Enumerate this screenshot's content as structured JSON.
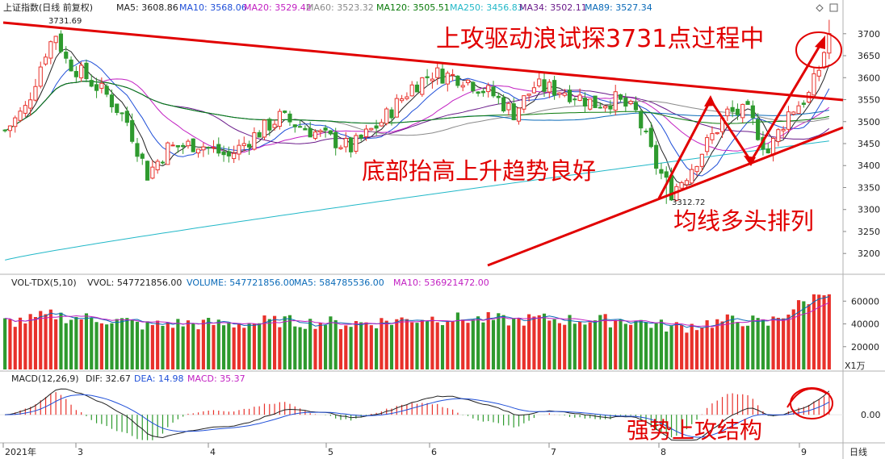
{
  "colors": {
    "up": "#e8312b",
    "down": "#2e9a2e",
    "annotation": "#e10000",
    "ma5": "#222222",
    "ma10": "#1f4fd8",
    "ma20": "#c21fc2",
    "ma60": "#8a8a8a",
    "ma120": "#0a7a0a",
    "ma250": "#22b8c8",
    "ma34": "#6a1a8a",
    "ma89": "#0a6ab8"
  },
  "main_header": {
    "title": "上证指数(日线 前复权)",
    "ma": [
      {
        "text": "MA5: 3608.86",
        "color": "#222222"
      },
      {
        "text": "MA10: 3568.06",
        "color": "#1f4fd8"
      },
      {
        "text": "MA20: 3529.42",
        "color": "#c21fc2"
      },
      {
        "text": "MA60: 3523.32",
        "color": "#8a8a8a"
      },
      {
        "text": "MA120: 3505.51",
        "color": "#0a7a0a"
      },
      {
        "text": "MA250: 3456.83",
        "color": "#22b8c8"
      },
      {
        "text": "MA34: 3502.11",
        "color": "#6a1a8a"
      },
      {
        "text": "MA89: 3527.34",
        "color": "#0a6ab8"
      }
    ]
  },
  "vol_header": {
    "prefix": "VOL-TDX(5,10)",
    "items": [
      {
        "text": "VVOL: 547721856.00",
        "color": "#222222"
      },
      {
        "text": "VOLUME: 547721856.00",
        "color": "#0a6ab8"
      },
      {
        "text": "MA5: 584785536.00",
        "color": "#0a6ab8"
      },
      {
        "text": "MA10: 536921472.00",
        "color": "#c21fc2"
      }
    ]
  },
  "macd_header": {
    "prefix": "MACD(12,26,9)",
    "items": [
      {
        "text": "DIF: 32.67",
        "color": "#222222"
      },
      {
        "text": "DEA: 14.98",
        "color": "#1f4fd8"
      },
      {
        "text": "MACD: 35.37",
        "color": "#c21fc2"
      }
    ]
  },
  "annotations": {
    "top": "上攻驱动浪试探3731点过程中",
    "middle": "底部抬高上升趋势良好",
    "right": "均线多头排列",
    "bottom": "强势上攻结构",
    "high_label": "3731.69",
    "low_label": "3312.72"
  },
  "vol_unit": "X1万",
  "period": "日线",
  "chart_data": [
    {
      "type": "candlestick",
      "title": "上证指数(日线 前复权)",
      "ylim": [
        3160,
        3740
      ],
      "y_ticks": [
        "3700",
        "3650",
        "3600",
        "3550",
        "3500",
        "3450",
        "3400",
        "3350",
        "3300",
        "3250",
        "3200"
      ],
      "x_labels": [
        "2021年",
        "3",
        "4",
        "5",
        "6",
        "7",
        "8",
        "9"
      ],
      "high": 3731.69,
      "low": 3312.72,
      "n_bars": 163
    },
    {
      "type": "bar",
      "title": "VOL-TDX(5,10)",
      "ylim": [
        0,
        68000
      ],
      "y_ticks": [
        "60000",
        "40000",
        "20000"
      ],
      "unit": "X1万"
    },
    {
      "type": "bar",
      "title": "MACD(12,26,9)",
      "ylim": [
        -50,
        55
      ],
      "y_ticks": [
        "0.00"
      ],
      "DIF": 32.67,
      "DEA": 14.98,
      "MACD": 35.37
    }
  ]
}
